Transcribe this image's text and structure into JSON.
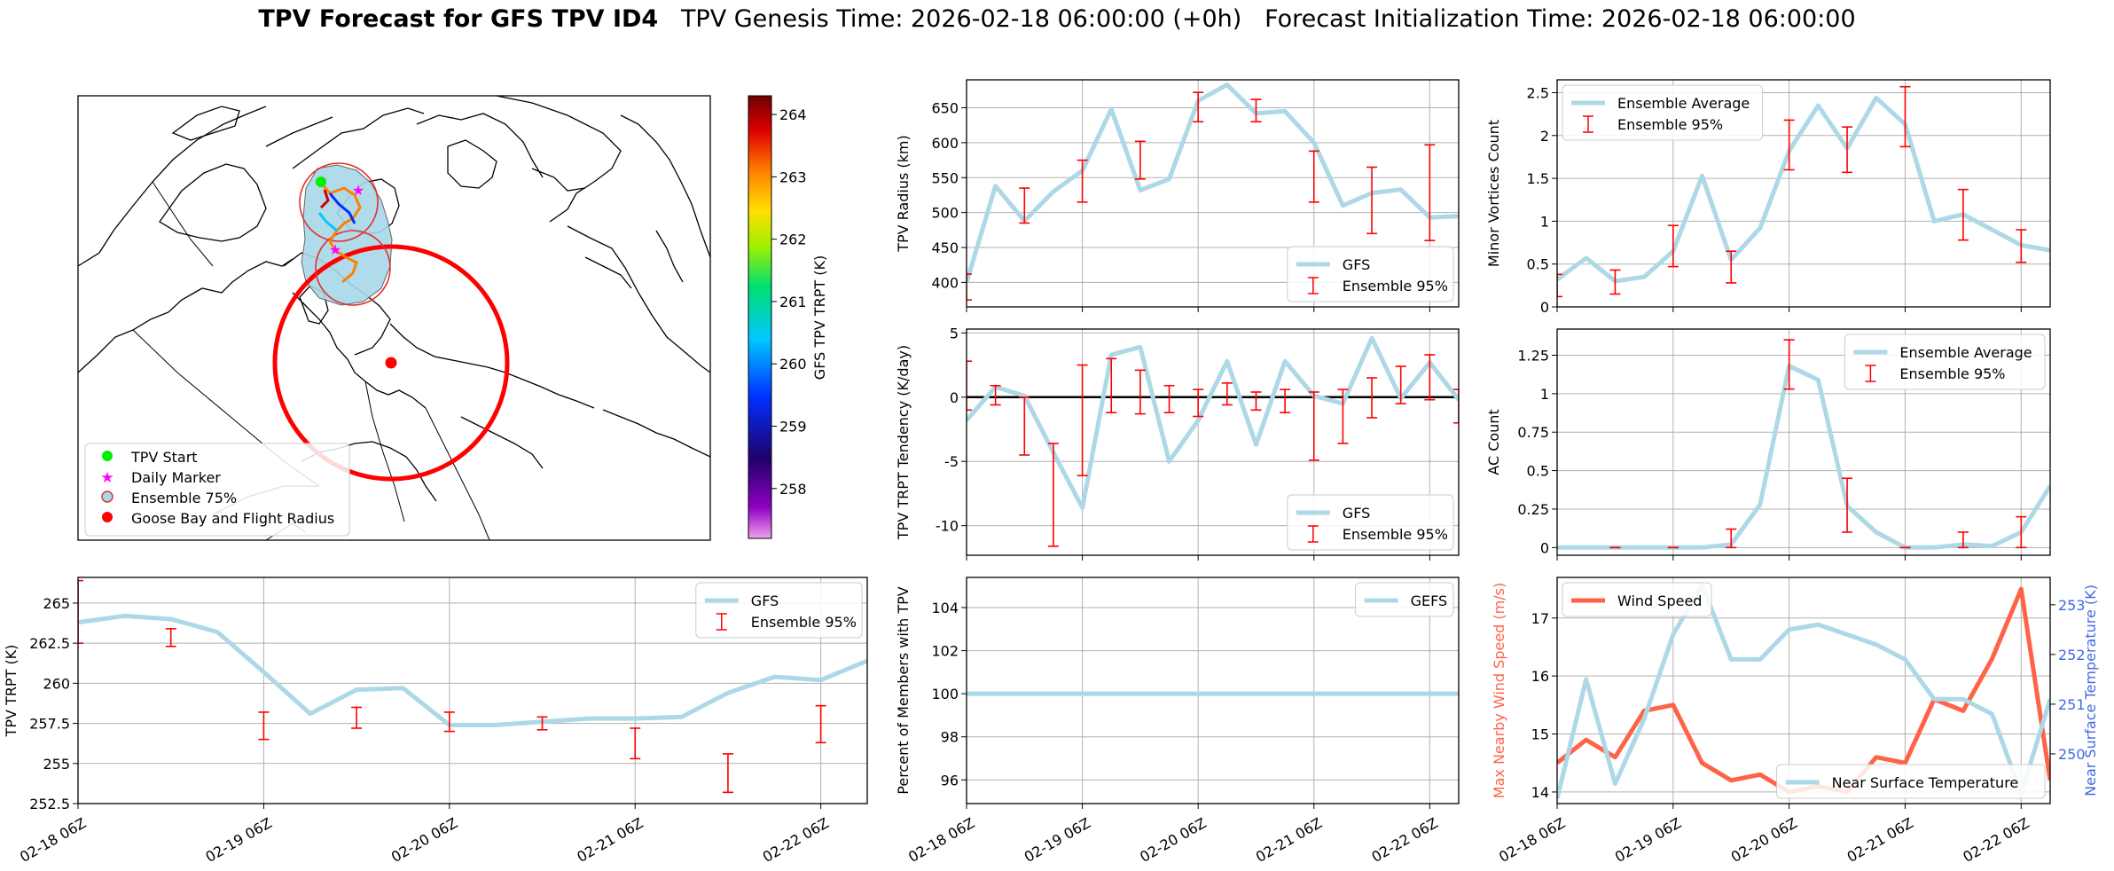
{
  "title": {
    "bold": "TPV Forecast for GFS TPV ID4",
    "genesis": "TPV Genesis Time: 2026-02-18 06:00:00 (+0h)",
    "init": "Forecast Initialization Time: 2026-02-18 06:00:00"
  },
  "map": {
    "legend": [
      "TPV Start",
      "Daily Marker",
      "Ensemble 75%",
      "Goose Bay and Flight Radius"
    ],
    "colorbar_label": "GFS TPV TRPT (K)",
    "colorbar_ticks": [
      258,
      259,
      260,
      261,
      262,
      263,
      264
    ],
    "colorbar_range": [
      257.2,
      264.3
    ],
    "colors": {
      "start": "#00ee00",
      "daily": "#ff00ff",
      "ensemble": "#a8d8e8",
      "flight": "#ff0000"
    }
  },
  "chart_data": [
    {
      "id": "radius",
      "type": "line",
      "ylabel": "TPV Radius (km)",
      "ylim": [
        365,
        690
      ],
      "yticks": [
        400,
        450,
        500,
        550,
        600,
        650
      ],
      "legend": "bottom-right",
      "series": [
        {
          "name": "GFS",
          "color": "#add8e6",
          "values": [
            400,
            538,
            488,
            530,
            560,
            648,
            532,
            548,
            660,
            683,
            642,
            645,
            600,
            510,
            528,
            533,
            493,
            495
          ]
        }
      ],
      "ensemble": {
        "name": "Ensemble 95%",
        "bars": [
          [
            0,
            375,
            412
          ],
          [
            2,
            485,
            535
          ],
          [
            4,
            515,
            575
          ],
          [
            6,
            548,
            602
          ],
          [
            8,
            630,
            672
          ],
          [
            10,
            630,
            662
          ],
          [
            12,
            515,
            588
          ],
          [
            14,
            470,
            565
          ],
          [
            16,
            460,
            597
          ]
        ]
      }
    },
    {
      "id": "minor",
      "type": "line",
      "ylabel": "Minor Vortices Count",
      "ylim": [
        0,
        2.65
      ],
      "yticks": [
        0.0,
        0.5,
        1.0,
        1.5,
        2.0,
        2.5
      ],
      "legend": "top-left",
      "series": [
        {
          "name": "Ensemble Average",
          "color": "#add8e6",
          "values": [
            0.32,
            0.57,
            0.3,
            0.35,
            0.65,
            1.53,
            0.55,
            0.92,
            1.82,
            2.35,
            1.85,
            2.44,
            2.13,
            1.0,
            1.08,
            0.9,
            0.72,
            0.66
          ]
        }
      ],
      "ensemble": {
        "name": "Ensemble 95%",
        "bars": [
          [
            0,
            0.12,
            0.38
          ],
          [
            2,
            0.15,
            0.43
          ],
          [
            4,
            0.47,
            0.95
          ],
          [
            6,
            0.28,
            0.65
          ],
          [
            8,
            1.6,
            2.18
          ],
          [
            10,
            1.57,
            2.1
          ],
          [
            12,
            1.87,
            2.57
          ],
          [
            14,
            0.78,
            1.37
          ],
          [
            16,
            0.52,
            0.9
          ]
        ]
      }
    },
    {
      "id": "tendency",
      "type": "line",
      "ylabel": "TPV TRPT Tendency (K/day)",
      "ylim": [
        -12.3,
        5.3
      ],
      "yticks": [
        -10,
        -5,
        0,
        5
      ],
      "zero_line": true,
      "legend": "bottom-right",
      "series": [
        {
          "name": "GFS",
          "color": "#add8e6",
          "values": [
            -1.8,
            0.8,
            0.1,
            -4.3,
            -8.6,
            3.3,
            3.9,
            -5.0,
            -1.8,
            2.8,
            -3.7,
            2.8,
            0.1,
            -0.5,
            4.6,
            -0.1,
            2.7,
            -0.2
          ]
        }
      ],
      "ensemble": {
        "name": "Ensemble 95%",
        "bars": [
          [
            0,
            -1.0,
            2.8
          ],
          [
            1,
            -0.6,
            0.9
          ],
          [
            2,
            -4.5,
            0.0
          ],
          [
            3,
            -11.6,
            -3.6
          ],
          [
            4,
            -6.1,
            2.5
          ],
          [
            5,
            -1.2,
            3.0
          ],
          [
            6,
            -1.3,
            2.1
          ],
          [
            7,
            -1.2,
            0.9
          ],
          [
            8,
            -1.5,
            0.6
          ],
          [
            9,
            -0.6,
            1.1
          ],
          [
            10,
            -1.0,
            0.4
          ],
          [
            11,
            -1.2,
            0.6
          ],
          [
            12,
            -4.9,
            0.4
          ],
          [
            13,
            -3.6,
            0.6
          ],
          [
            14,
            -1.6,
            1.5
          ],
          [
            15,
            -0.5,
            2.4
          ],
          [
            16,
            -0.2,
            3.3
          ],
          [
            17,
            -2.0,
            0.6
          ]
        ]
      }
    },
    {
      "id": "ac",
      "type": "line",
      "ylabel": "AC Count",
      "ylim": [
        -0.05,
        1.42
      ],
      "yticks": [
        0.0,
        0.25,
        0.5,
        0.75,
        1.0,
        1.25
      ],
      "legend": "top-right",
      "series": [
        {
          "name": "Ensemble Average",
          "color": "#add8e6",
          "values": [
            0,
            0,
            0,
            0,
            0,
            0,
            0.02,
            0.28,
            1.18,
            1.09,
            0.27,
            0.1,
            0.0,
            0.0,
            0.02,
            0.01,
            0.1,
            0.4
          ]
        }
      ],
      "ensemble": {
        "name": "Ensemble 95%",
        "bars": [
          [
            2,
            0,
            0
          ],
          [
            4,
            0,
            0
          ],
          [
            6,
            0,
            0.12
          ],
          [
            8,
            1.03,
            1.35
          ],
          [
            10,
            0.1,
            0.45
          ],
          [
            12,
            0,
            0
          ],
          [
            14,
            0,
            0.1
          ],
          [
            16,
            0,
            0.2
          ]
        ]
      }
    },
    {
      "id": "trpt",
      "type": "line",
      "ylabel": "TPV TRPT (K)",
      "ylim": [
        252.5,
        266.6
      ],
      "yticks": [
        252.5,
        255.0,
        257.5,
        260.0,
        262.5,
        265.0
      ],
      "legend": "top-right",
      "series": [
        {
          "name": "GFS",
          "color": "#add8e6",
          "values": [
            263.8,
            264.2,
            264.0,
            263.2,
            260.7,
            258.1,
            259.6,
            259.7,
            257.4,
            257.4,
            257.6,
            257.8,
            257.8,
            257.9,
            259.4,
            260.4,
            260.2,
            261.4
          ]
        }
      ],
      "ensemble": {
        "name": "Ensemble 95%",
        "bars": [
          [
            0,
            262.5,
            266.4
          ],
          [
            2,
            262.3,
            263.4
          ],
          [
            4,
            256.5,
            258.2
          ],
          [
            6,
            257.2,
            258.5
          ],
          [
            8,
            257.0,
            258.2
          ],
          [
            10,
            257.1,
            257.9
          ],
          [
            12,
            255.3,
            257.2
          ],
          [
            14,
            253.2,
            255.6
          ],
          [
            16,
            256.3,
            258.6
          ]
        ]
      }
    },
    {
      "id": "members",
      "type": "line",
      "ylabel": "Percent of Members with TPV",
      "ylim": [
        94.9,
        105.4
      ],
      "yticks": [
        96,
        98,
        100,
        102,
        104
      ],
      "legend": "top-right",
      "series": [
        {
          "name": "GEFS",
          "color": "#add8e6",
          "values": [
            100,
            100,
            100,
            100,
            100,
            100,
            100,
            100,
            100,
            100,
            100,
            100,
            100,
            100,
            100,
            100,
            100,
            100
          ]
        }
      ]
    },
    {
      "id": "wind",
      "type": "line",
      "ylabel": "Max Nearby Wind Speed (m/s)",
      "ylabel2": "Near Surface Temperature (K)",
      "ylim": [
        13.8,
        17.7
      ],
      "yticks": [
        14,
        15,
        16,
        17
      ],
      "y2lim": [
        249.0,
        253.55
      ],
      "y2ticks": [
        250,
        251,
        252,
        253
      ],
      "series": [
        {
          "name": "Wind Speed",
          "color": "#ff6347",
          "axis": "left",
          "legend": "top-left",
          "values": [
            14.5,
            14.9,
            14.6,
            15.4,
            15.5,
            14.5,
            14.2,
            14.3,
            14.0,
            14.1,
            14.0,
            14.6,
            14.5,
            15.6,
            15.4,
            16.3,
            17.5,
            14.2
          ]
        },
        {
          "name": "Near Surface Temperature",
          "color": "#add8e6",
          "axis": "right",
          "legend": "bottom-right",
          "values": [
            249.1,
            251.5,
            249.4,
            250.7,
            252.4,
            253.4,
            251.9,
            251.9,
            252.5,
            252.6,
            252.4,
            252.2,
            251.9,
            251.1,
            251.1,
            250.8,
            249.2,
            251.1
          ]
        }
      ]
    }
  ],
  "x_ticks": [
    "02-18 06Z",
    "02-19 06Z",
    "02-20 06Z",
    "02-21 06Z",
    "02-22 06Z"
  ]
}
